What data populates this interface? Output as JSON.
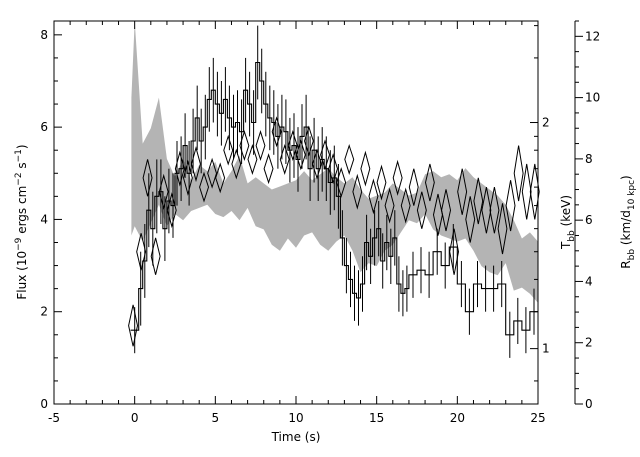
{
  "chart_data": {
    "type": "line",
    "xlabel": "Time (s)",
    "xlim": [
      -5,
      25
    ],
    "x_ticks": [
      "-5",
      "0",
      "5",
      "10",
      "15",
      "20",
      "25"
    ],
    "left_axis": {
      "label_parts": [
        "Flux (10",
        "−9",
        " ergs cm",
        "−2",
        " s",
        "−1",
        ")"
      ],
      "ylim": [
        0,
        8.3
      ],
      "ticks": [
        "0",
        "2",
        "4",
        "6",
        "8"
      ]
    },
    "right_axis_R": {
      "label_parts": [
        "R",
        "bb",
        " (km/d",
        "10 kpc",
        ")"
      ],
      "ylim": [
        0,
        12.5
      ],
      "ticks": [
        "0",
        "2",
        "4",
        "6",
        "8",
        "10",
        "12"
      ]
    },
    "right_axis_T": {
      "label_parts": [
        "T",
        "bb",
        " (keV)"
      ],
      "ticks": [
        "1",
        "2"
      ]
    },
    "series": [
      {
        "kind": "flux_histogram",
        "x": [
          -0.25,
          0.25,
          0.5,
          0.75,
          1.0,
          1.25,
          1.5,
          1.75,
          2.0,
          2.25,
          2.5,
          2.75,
          3.0,
          3.25,
          3.5,
          3.75,
          4.0,
          4.25,
          4.5,
          4.75,
          5.0,
          5.25,
          5.5,
          5.75,
          6.0,
          6.25,
          6.5,
          6.75,
          7.0,
          7.25,
          7.5,
          7.75,
          8.0,
          8.25,
          8.5,
          8.75,
          9.0,
          9.25,
          9.5,
          9.75,
          10.0,
          10.25,
          10.5,
          10.75,
          11.0,
          11.25,
          11.5,
          11.75,
          12.0,
          12.25,
          12.5,
          12.75,
          13.0,
          13.25,
          13.5,
          13.75,
          14.0,
          14.25,
          14.5,
          14.75,
          15.0,
          15.25,
          15.5,
          15.75,
          16.0,
          16.25,
          16.5,
          16.75,
          17.0,
          17.5,
          18.0,
          18.5,
          19.0,
          19.5,
          20.0,
          20.5,
          21.0,
          21.5,
          22.0,
          22.5,
          23.0,
          23.5,
          24.0,
          24.5,
          25.0
        ],
        "y": [
          1.6,
          2.5,
          3.1,
          4.2,
          3.8,
          4.5,
          4.6,
          3.8,
          4.4,
          4.3,
          5.0,
          5.1,
          5.6,
          5.0,
          5.7,
          6.2,
          5.7,
          6.0,
          6.6,
          6.8,
          6.5,
          6.3,
          6.6,
          6.2,
          6.0,
          6.1,
          5.9,
          6.8,
          6.5,
          6.1,
          7.4,
          7.0,
          6.5,
          6.2,
          6.1,
          5.8,
          6.0,
          5.9,
          5.5,
          5.6,
          5.3,
          5.8,
          6.0,
          5.1,
          5.5,
          5.1,
          5.3,
          5.1,
          4.8,
          4.9,
          4.5,
          3.6,
          3.0,
          2.7,
          2.4,
          2.3,
          2.6,
          3.5,
          3.2,
          3.6,
          3.8,
          3.1,
          3.5,
          3.2,
          3.6,
          2.6,
          2.4,
          2.5,
          2.8,
          2.9,
          2.8,
          3.3,
          3.0,
          3.4,
          2.6,
          2.0,
          2.6,
          2.5,
          2.5,
          2.6,
          1.5,
          1.8,
          1.6,
          2.0,
          2.0
        ],
        "err": [
          0.5,
          0.8,
          0.8,
          0.8,
          0.8,
          0.8,
          0.7,
          0.7,
          0.7,
          0.7,
          0.7,
          0.7,
          0.7,
          0.7,
          0.7,
          0.7,
          0.7,
          0.7,
          0.7,
          0.7,
          0.7,
          0.7,
          0.7,
          0.7,
          0.7,
          0.7,
          0.7,
          0.7,
          0.7,
          0.7,
          0.8,
          0.7,
          0.7,
          0.7,
          0.7,
          0.7,
          0.7,
          0.7,
          0.7,
          0.7,
          0.7,
          0.7,
          0.7,
          0.7,
          0.7,
          0.7,
          0.7,
          0.7,
          0.7,
          0.7,
          0.7,
          0.6,
          0.6,
          0.6,
          0.6,
          0.6,
          0.6,
          0.6,
          0.6,
          0.6,
          0.6,
          0.6,
          0.6,
          0.6,
          0.6,
          0.6,
          0.5,
          0.5,
          0.5,
          0.5,
          0.5,
          0.5,
          0.5,
          0.5,
          0.5,
          0.5,
          0.5,
          0.5,
          0.5,
          0.5,
          0.5,
          0.5,
          0.5,
          0.5,
          0.5
        ]
      },
      {
        "kind": "temperature_diamonds",
        "x": [
          -0.1,
          0.4,
          0.8,
          1.3,
          1.8,
          2.3,
          2.8,
          3.3,
          3.8,
          4.3,
          4.8,
          5.3,
          5.8,
          6.3,
          6.8,
          7.3,
          7.8,
          8.3,
          8.8,
          9.3,
          9.8,
          10.3,
          10.8,
          11.3,
          11.8,
          12.3,
          12.8,
          13.3,
          13.8,
          14.3,
          14.8,
          15.3,
          15.8,
          16.3,
          16.8,
          17.3,
          17.8,
          18.3,
          18.8,
          19.3,
          19.8,
          20.3,
          20.8,
          21.3,
          21.8,
          22.3,
          22.8,
          23.3,
          23.8,
          24.3,
          24.8
        ],
        "y": [
          1.7,
          3.3,
          4.9,
          3.2,
          4.6,
          4.2,
          5.1,
          4.9,
          5.2,
          4.7,
          5.0,
          4.9,
          5.5,
          5.2,
          5.6,
          5.3,
          5.6,
          5.1,
          5.9,
          5.3,
          5.6,
          5.4,
          5.7,
          5.2,
          5.4,
          5.1,
          4.8,
          5.3,
          4.6,
          5.1,
          4.5,
          4.8,
          4.3,
          4.9,
          4.3,
          4.7,
          4.2,
          4.8,
          4.1,
          4.2,
          3.3,
          4.6,
          4.0,
          4.4,
          4.2,
          4.2,
          3.8,
          4.3,
          5.0,
          4.6,
          4.6
        ],
        "half_height": [
          0.45,
          0.4,
          0.4,
          0.4,
          0.35,
          0.35,
          0.35,
          0.35,
          0.35,
          0.3,
          0.3,
          0.3,
          0.3,
          0.3,
          0.3,
          0.3,
          0.3,
          0.3,
          0.3,
          0.3,
          0.3,
          0.3,
          0.3,
          0.3,
          0.3,
          0.3,
          0.3,
          0.3,
          0.35,
          0.35,
          0.35,
          0.35,
          0.35,
          0.35,
          0.35,
          0.4,
          0.4,
          0.4,
          0.45,
          0.45,
          0.5,
          0.5,
          0.5,
          0.5,
          0.5,
          0.5,
          0.55,
          0.55,
          0.6,
          0.6,
          0.6
        ]
      },
      {
        "kind": "radius_band",
        "x": [
          -0.2,
          0.0,
          0.5,
          1.0,
          1.5,
          2.0,
          2.5,
          3.0,
          3.5,
          4.0,
          4.5,
          5.0,
          5.5,
          6.0,
          6.5,
          7.0,
          7.5,
          8.0,
          8.5,
          9.0,
          9.5,
          10.0,
          10.5,
          11.0,
          11.5,
          12.0,
          12.5,
          13.0,
          13.5,
          14.0,
          14.5,
          15.0,
          15.5,
          16.0,
          16.5,
          17.0,
          17.5,
          18.0,
          18.5,
          19.0,
          19.5,
          20.0,
          20.5,
          21.0,
          21.5,
          22.0,
          22.5,
          23.0,
          23.5,
          24.0,
          24.5,
          25.0
        ],
        "lower": [
          5.5,
          5.8,
          5.3,
          5.9,
          6.5,
          5.8,
          6.2,
          6.0,
          6.3,
          6.4,
          6.5,
          6.2,
          6.1,
          6.3,
          6.0,
          6.4,
          5.8,
          5.7,
          5.2,
          5.0,
          5.4,
          5.1,
          5.5,
          5.6,
          5.2,
          5.0,
          5.3,
          5.5,
          5.0,
          4.3,
          4.6,
          4.5,
          5.0,
          5.2,
          5.6,
          6.0,
          5.9,
          6.2,
          5.7,
          5.5,
          5.4,
          5.3,
          5.4,
          5.0,
          4.5,
          4.3,
          4.2,
          4.6,
          3.7,
          3.8,
          3.6,
          3.3
        ],
        "upper": [
          10.0,
          12.5,
          8.5,
          9.0,
          10.0,
          8.0,
          7.4,
          8.0,
          7.3,
          7.8,
          7.6,
          7.9,
          7.2,
          7.6,
          8.1,
          7.2,
          7.4,
          7.2,
          7.0,
          7.1,
          7.2,
          7.3,
          7.6,
          7.3,
          7.5,
          7.7,
          7.4,
          7.2,
          7.4,
          7.0,
          6.7,
          6.8,
          6.9,
          7.2,
          7.0,
          6.8,
          6.9,
          7.5,
          7.6,
          7.4,
          7.5,
          7.3,
          7.7,
          7.4,
          7.2,
          7.0,
          6.8,
          6.5,
          6.0,
          5.4,
          5.6,
          5.3
        ]
      }
    ]
  }
}
